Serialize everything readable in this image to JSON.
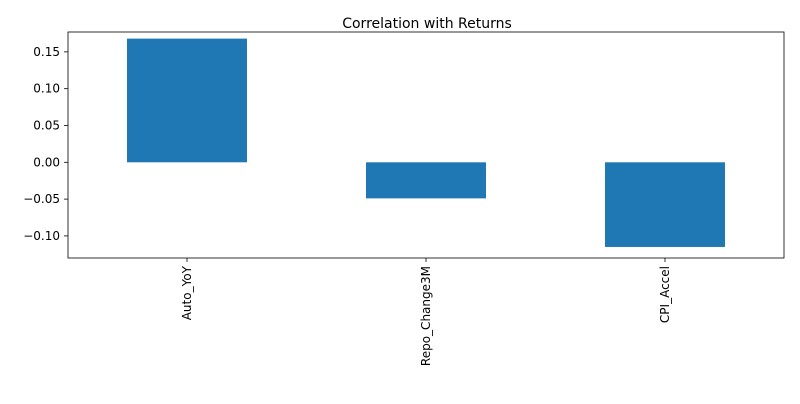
{
  "chart_data": {
    "type": "bar",
    "title": "Correlation with Returns",
    "xlabel": "",
    "ylabel": "",
    "categories": [
      "Auto_YoY",
      "Repo_Change3M",
      "CPI_Accel"
    ],
    "values": [
      0.168,
      -0.049,
      -0.115
    ],
    "ylim": [
      -0.13,
      0.177
    ],
    "yticks": [
      -0.1,
      -0.05,
      0.0,
      0.05,
      0.1,
      0.15
    ],
    "ytick_labels": [
      "−0.10",
      "−0.05",
      "0.00",
      "0.05",
      "0.10",
      "0.15"
    ],
    "grid": false,
    "legend": "none",
    "bar_color": "#1f77b4",
    "x_tick_rotation": "vertical"
  }
}
